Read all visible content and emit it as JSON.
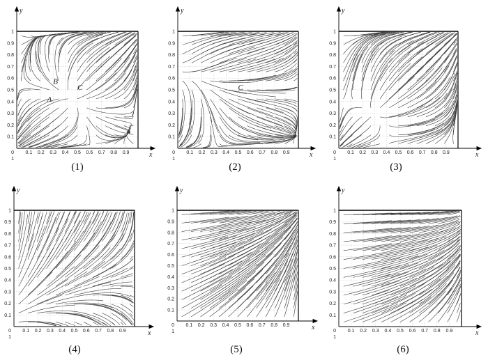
{
  "panels": [
    {
      "caption": "(1)",
      "axis_x": "x",
      "axis_y": "y",
      "origin": "0",
      "origin_sub": "1",
      "edge_x": "1",
      "edge_y": "1",
      "ticks": [
        "0.1",
        "0.2",
        "0.3",
        "0.4",
        "0.5",
        "0.6",
        "0.7",
        "0.8",
        "0.9"
      ],
      "labels": [
        {
          "text": "B",
          "at": [
            0.3,
            0.55
          ]
        },
        {
          "text": "C",
          "at": [
            0.5,
            0.5
          ]
        },
        {
          "text": "A",
          "at": [
            0.25,
            0.4
          ]
        }
      ],
      "field": "saddle_center"
    },
    {
      "caption": "(2)",
      "axis_x": "x",
      "axis_y": "y",
      "origin": "0",
      "origin_sub": "1",
      "edge_x": "1",
      "edge_y": "1",
      "ticks": [
        "0.1",
        "0.2",
        "0.3",
        "0.4",
        "0.5",
        "0.6",
        "0.7",
        "0.8",
        "0.9"
      ],
      "labels": [
        {
          "text": "C",
          "at": [
            0.5,
            0.5
          ]
        }
      ],
      "field": "saddle_left"
    },
    {
      "caption": "(3)",
      "axis_x": "x",
      "axis_y": "y",
      "origin": "0",
      "origin_sub": "1",
      "edge_x": "1",
      "edge_y": "1",
      "ticks": [
        "0.1",
        "0.2",
        "0.3",
        "0.4",
        "0.5",
        "0.6",
        "0.7",
        "0.8",
        "0.9"
      ],
      "labels": [],
      "field": "saddle_low"
    },
    {
      "caption": "(4)",
      "axis_x": "x",
      "axis_y": "y",
      "origin": "0",
      "origin_sub": "1",
      "edge_x": "1",
      "edge_y": "1",
      "ticks": [
        "0.1",
        "0.2",
        "0.3",
        "0.4",
        "0.5",
        "0.6",
        "0.7",
        "0.8",
        "0.9"
      ],
      "labels": [],
      "field": "fan_origin"
    },
    {
      "caption": "(5)",
      "axis_x": "x",
      "axis_y": "y",
      "origin": "0",
      "origin_sub": "1",
      "edge_x": "1",
      "edge_y": "1",
      "ticks": [
        "0.1",
        "0.2",
        "0.3",
        "0.4",
        "0.5",
        "0.6",
        "0.7",
        "0.8",
        "0.9"
      ],
      "labels": [],
      "field": "sink_corner"
    },
    {
      "caption": "(6)",
      "axis_x": "x",
      "axis_y": "y",
      "origin": "0",
      "origin_sub": "1",
      "edge_x": "1",
      "edge_y": "1",
      "ticks": [
        "0.1",
        "0.2",
        "0.3",
        "0.4",
        "0.5",
        "0.6",
        "0.7",
        "0.8",
        "0.9"
      ],
      "labels": [],
      "field": "sink_corner_soft"
    }
  ]
}
